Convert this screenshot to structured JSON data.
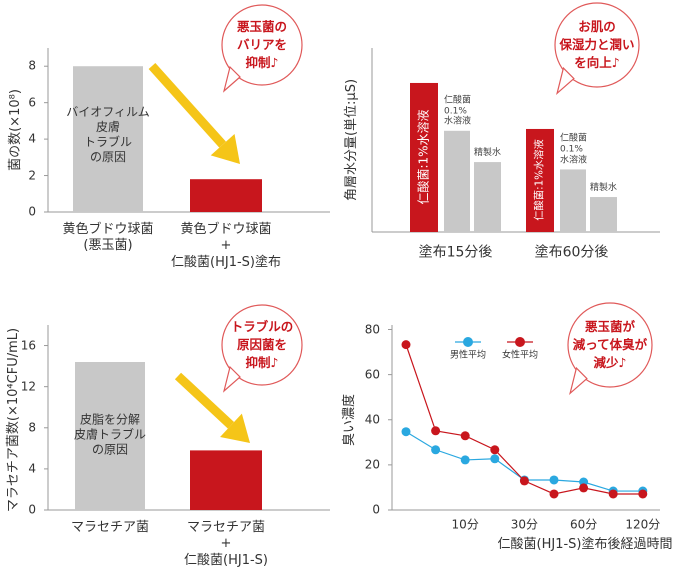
{
  "chart_data": [
    {
      "type": "bar",
      "y_label": "菌の数(×10⁸)",
      "categories": [
        "黄色ブドウ球菌\n(悪玉菌)",
        "黄色ブドウ球菌\n+\n仁酸菌(HJ1-S)塗布"
      ],
      "values": [
        8.0,
        1.8
      ],
      "colors": [
        "#c8c8c8",
        "#c8161d"
      ],
      "ylim": [
        0,
        9
      ],
      "yticks": [
        0,
        2,
        4,
        6,
        8
      ],
      "bar_note": "バイオフィルム\n皮膚\nトラブル\nの原因",
      "callout": "悪玉菌の\nバリアを\n抑制♪"
    },
    {
      "type": "grouped_bar",
      "y_label": "角層水分量(単位:μS)",
      "categories": [
        "塗布15分後",
        "塗布60分後"
      ],
      "series": [
        {
          "name": "仁酸菌:1%水溶液",
          "color": "#c8161d",
          "values": [
            81,
            56
          ]
        },
        {
          "name": "仁酸菌\n0.1%\n水溶液",
          "color": "#c8c8c8",
          "values": [
            55,
            34
          ]
        },
        {
          "name": "精製水",
          "color": "#c8c8c8",
          "values": [
            38,
            19
          ]
        }
      ],
      "ylim": [
        0,
        100
      ],
      "callout": "お肌の\n保湿力と潤い\nを向上♪"
    },
    {
      "type": "bar",
      "y_label": "マラセチア菌数(×10⁴CFU/mL)",
      "categories": [
        "マラセチア菌",
        "マラセチア菌\n+\n仁酸菌(HJ1-S)"
      ],
      "values": [
        14.4,
        5.8
      ],
      "colors": [
        "#c8c8c8",
        "#c8161d"
      ],
      "ylim": [
        0,
        18
      ],
      "yticks": [
        0,
        4,
        8,
        12,
        16
      ],
      "bar_note": "皮脂を分解\n皮膚トラブル\nの原因",
      "callout": "トラブルの\n原因菌を\n抑制♪"
    },
    {
      "type": "line",
      "y_label": "臭い濃度",
      "x_label": "仁酸菌(HJ1-S)塗布後経過時間",
      "categories": [
        null,
        null,
        "10分",
        null,
        "30分",
        null,
        "60分",
        null,
        "120分"
      ],
      "series": [
        {
          "name": "男性平均",
          "color": "#2aa8e0",
          "values": [
            34.7,
            26.7,
            22.2,
            22.7,
            13.3,
            13.3,
            12.4,
            8.4,
            8.4
          ]
        },
        {
          "name": "女性平均",
          "color": "#c8161d",
          "values": [
            73.3,
            35.1,
            32.9,
            26.7,
            12.9,
            7.1,
            9.8,
            7.1,
            7.1
          ]
        }
      ],
      "ylim": [
        0,
        82
      ],
      "yticks": [
        0,
        20,
        40,
        60,
        80
      ],
      "callout": "悪玉菌が\n減って体臭が\n減少♪"
    }
  ]
}
